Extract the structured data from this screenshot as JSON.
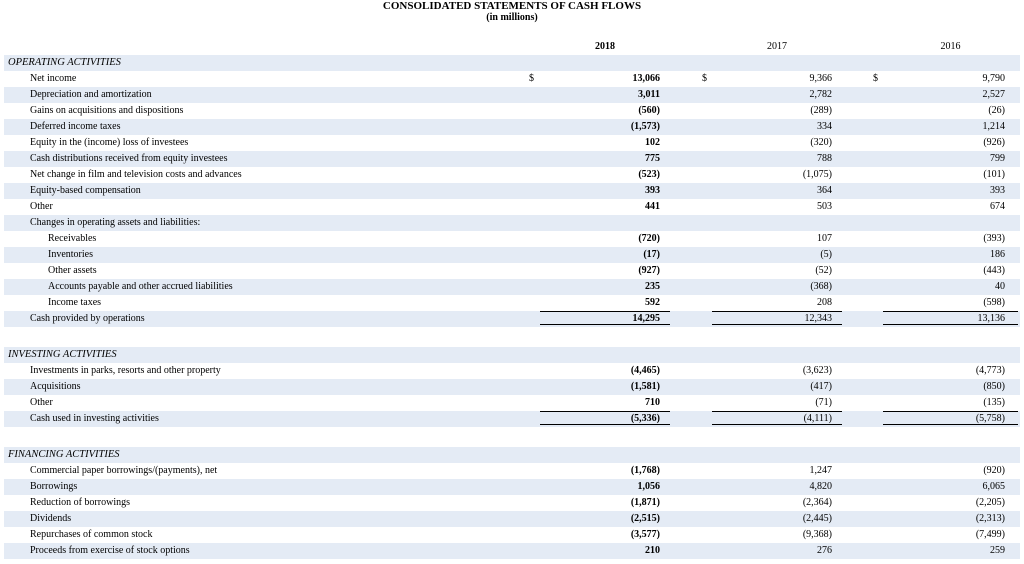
{
  "header": {
    "title": "CONSOLIDATED STATEMENTS OF CASH FLOWS",
    "subtitle": "(in millions)",
    "columns": [
      "2018",
      "2017",
      "2016"
    ]
  },
  "sections": [
    {
      "title": "OPERATING ACTIVITIES",
      "rows": [
        {
          "label": "Net income",
          "indent": 1,
          "prefix": [
            "$",
            "$",
            "$"
          ],
          "values": [
            "13,066",
            "9,366",
            "9,790"
          ]
        },
        {
          "label": "Depreciation and amortization",
          "indent": 1,
          "values": [
            "3,011",
            "2,782",
            "2,527"
          ]
        },
        {
          "label": "Gains on acquisitions and dispositions",
          "indent": 1,
          "values": [
            "(560)",
            "(289)",
            "(26)"
          ]
        },
        {
          "label": "Deferred income taxes",
          "indent": 1,
          "values": [
            "(1,573)",
            "334",
            "1,214"
          ]
        },
        {
          "label": "Equity in the (income) loss of investees",
          "indent": 1,
          "values": [
            "102",
            "(320)",
            "(926)"
          ]
        },
        {
          "label": "Cash distributions received from equity investees",
          "indent": 1,
          "values": [
            "775",
            "788",
            "799"
          ]
        },
        {
          "label": "Net change in film and television costs and advances",
          "indent": 1,
          "values": [
            "(523)",
            "(1,075)",
            "(101)"
          ]
        },
        {
          "label": "Equity-based compensation",
          "indent": 1,
          "values": [
            "393",
            "364",
            "393"
          ]
        },
        {
          "label": "Other",
          "indent": 1,
          "values": [
            "441",
            "503",
            "674"
          ]
        },
        {
          "label": "Changes in operating assets and liabilities:",
          "indent": 1
        },
        {
          "label": "Receivables",
          "indent": 2,
          "values": [
            "(720)",
            "107",
            "(393)"
          ]
        },
        {
          "label": "Inventories",
          "indent": 2,
          "values": [
            "(17)",
            "(5)",
            "186"
          ]
        },
        {
          "label": "Other assets",
          "indent": 2,
          "values": [
            "(927)",
            "(52)",
            "(443)"
          ]
        },
        {
          "label": "Accounts payable and other accrued liabilities",
          "indent": 2,
          "values": [
            "235",
            "(368)",
            "40"
          ]
        },
        {
          "label": "Income taxes",
          "indent": 2,
          "values": [
            "592",
            "208",
            "(598)"
          ]
        },
        {
          "label": "Cash provided by operations",
          "indent": 1,
          "total": true,
          "values": [
            "14,295",
            "12,343",
            "13,136"
          ]
        }
      ]
    },
    {
      "title": "INVESTING ACTIVITIES",
      "rows": [
        {
          "label": "Investments in parks, resorts and other property",
          "indent": 1,
          "values": [
            "(4,465)",
            "(3,623)",
            "(4,773)"
          ]
        },
        {
          "label": "Acquisitions",
          "indent": 1,
          "values": [
            "(1,581)",
            "(417)",
            "(850)"
          ]
        },
        {
          "label": "Other",
          "indent": 1,
          "values": [
            "710",
            "(71)",
            "(135)"
          ]
        },
        {
          "label": "Cash used in investing activities",
          "indent": 1,
          "total": true,
          "values": [
            "(5,336)",
            "(4,111)",
            "(5,758)"
          ]
        }
      ]
    },
    {
      "title": "FINANCING ACTIVITIES",
      "rows": [
        {
          "label": "Commercial paper borrowings/(payments), net",
          "indent": 1,
          "values": [
            "(1,768)",
            "1,247",
            "(920)"
          ]
        },
        {
          "label": "Borrowings",
          "indent": 1,
          "values": [
            "1,056",
            "4,820",
            "6,065"
          ]
        },
        {
          "label": "Reduction of borrowings",
          "indent": 1,
          "values": [
            "(1,871)",
            "(2,364)",
            "(2,205)"
          ]
        },
        {
          "label": "Dividends",
          "indent": 1,
          "values": [
            "(2,515)",
            "(2,445)",
            "(2,313)"
          ]
        },
        {
          "label": "Repurchases of common stock",
          "indent": 1,
          "values": [
            "(3,577)",
            "(9,368)",
            "(7,499)"
          ]
        },
        {
          "label": "Proceeds from exercise of stock options",
          "indent": 1,
          "values": [
            "210",
            "276",
            "259"
          ]
        }
      ]
    }
  ]
}
